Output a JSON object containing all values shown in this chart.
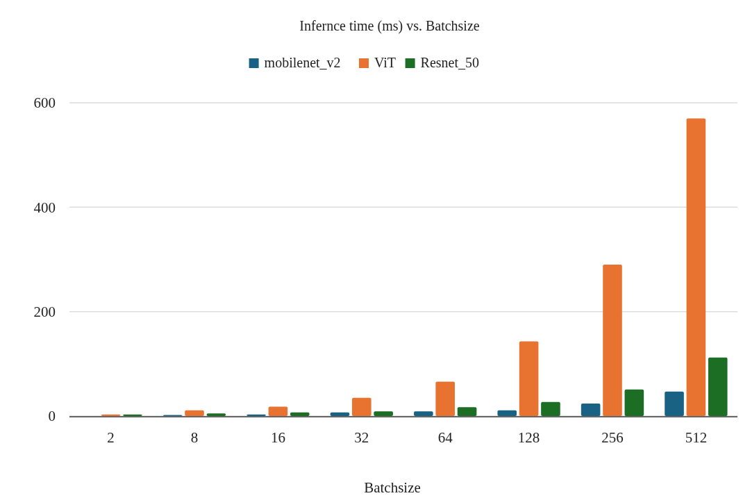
{
  "chart_data": {
    "type": "bar",
    "title": "Infernce time (ms) vs. Batchsize",
    "xlabel": "Batchsize",
    "categories": [
      "2",
      "8",
      "16",
      "32",
      "64",
      "128",
      "256",
      "512"
    ],
    "series": [
      {
        "name": "mobilenet_v2",
        "color": "#1a6284",
        "values": [
          null,
          2,
          3,
          7,
          9,
          11,
          24,
          47
        ]
      },
      {
        "name": "ViT",
        "color": "#e87331",
        "values": [
          3,
          11,
          18,
          35,
          66,
          143,
          290,
          570
        ]
      },
      {
        "name": "Resnet_50",
        "color": "#1c6e25",
        "values": [
          3,
          5,
          7,
          9,
          17,
          27,
          51,
          112
        ]
      }
    ],
    "ylim": [
      0,
      600
    ],
    "yticks": [
      0,
      200,
      400,
      600
    ],
    "grid": "y",
    "legend": "top"
  }
}
